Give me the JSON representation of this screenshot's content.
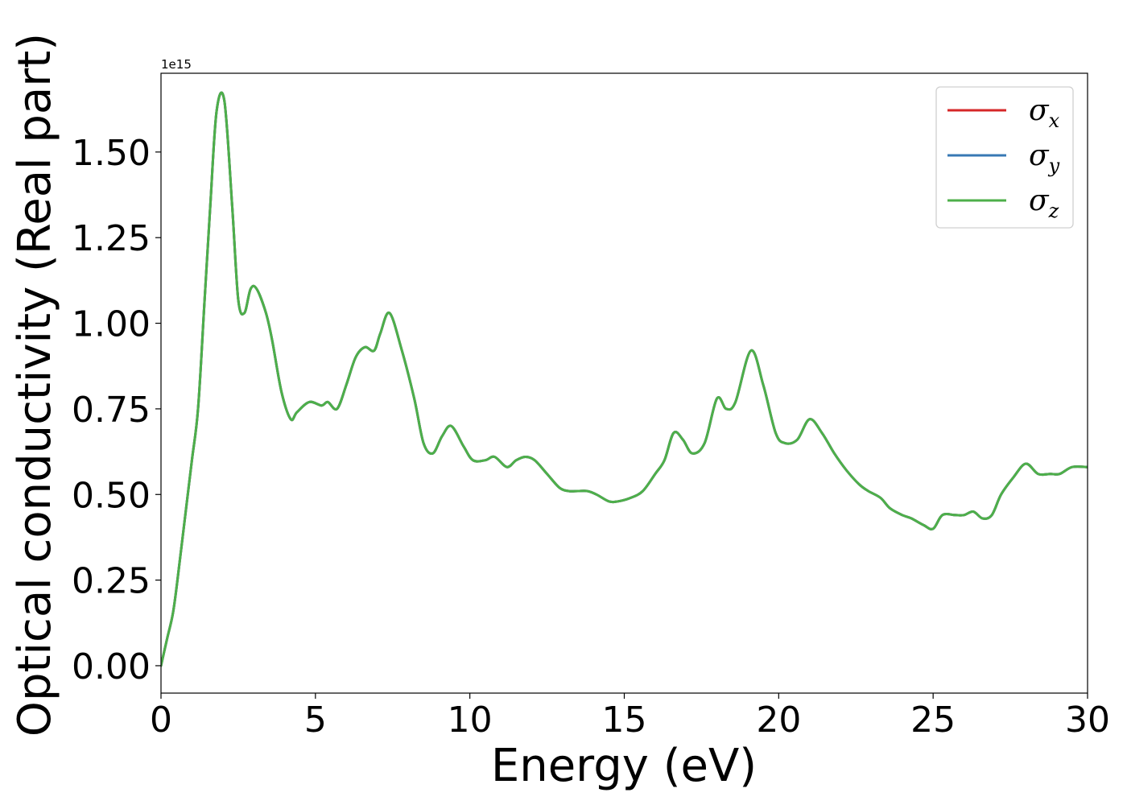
{
  "chart_data": {
    "type": "line",
    "title": "",
    "xlabel": "Energy (eV)",
    "ylabel": "Optical conductivity (Real part)",
    "y_offset_label": "1e15",
    "y_scale_factor": 1000000000000000.0,
    "xlim": [
      0,
      30
    ],
    "ylim": [
      -0.08,
      1.73
    ],
    "xticks": [
      0,
      5,
      10,
      15,
      20,
      25,
      30
    ],
    "xtick_labels": [
      "0",
      "5",
      "10",
      "15",
      "20",
      "25",
      "30"
    ],
    "yticks": [
      0.0,
      0.25,
      0.5,
      0.75,
      1.0,
      1.25,
      1.5
    ],
    "ytick_labels": [
      "0.00",
      "0.25",
      "0.50",
      "0.75",
      "1.00",
      "1.25",
      "1.50"
    ],
    "grid": false,
    "legend_position": "top-right",
    "x": [
      0,
      0.2,
      0.4,
      0.6,
      0.8,
      1.0,
      1.2,
      1.4,
      1.6,
      1.8,
      2.05,
      2.3,
      2.5,
      2.7,
      2.9,
      3.1,
      3.4,
      3.6,
      3.9,
      4.2,
      4.4,
      4.8,
      5.2,
      5.4,
      5.7,
      6.0,
      6.3,
      6.6,
      6.9,
      7.1,
      7.4,
      7.8,
      8.2,
      8.5,
      8.8,
      9.1,
      9.4,
      9.8,
      10.1,
      10.5,
      10.8,
      11.2,
      11.5,
      11.8,
      12.1,
      12.5,
      12.9,
      13.2,
      13.5,
      13.8,
      14.1,
      14.5,
      14.8,
      15.2,
      15.6,
      16.0,
      16.3,
      16.6,
      16.9,
      17.2,
      17.6,
      18.0,
      18.3,
      18.6,
      19.1,
      19.5,
      19.9,
      20.2,
      20.6,
      21.0,
      21.4,
      21.8,
      22.2,
      22.6,
      22.9,
      23.3,
      23.6,
      24.0,
      24.3,
      24.7,
      25.0,
      25.3,
      25.7,
      26.0,
      26.3,
      26.6,
      26.9,
      27.2,
      27.6,
      28.0,
      28.4,
      28.8,
      29.1,
      29.5,
      30.0
    ],
    "series": [
      {
        "name": "σx",
        "color": "#d62728",
        "values": [
          0.0,
          0.08,
          0.16,
          0.3,
          0.45,
          0.6,
          0.75,
          1.05,
          1.35,
          1.62,
          1.65,
          1.35,
          1.07,
          1.03,
          1.1,
          1.1,
          1.03,
          0.95,
          0.8,
          0.72,
          0.74,
          0.77,
          0.76,
          0.77,
          0.75,
          0.82,
          0.9,
          0.93,
          0.92,
          0.97,
          1.03,
          0.92,
          0.78,
          0.65,
          0.62,
          0.67,
          0.7,
          0.64,
          0.6,
          0.6,
          0.61,
          0.58,
          0.6,
          0.61,
          0.6,
          0.56,
          0.52,
          0.51,
          0.51,
          0.51,
          0.5,
          0.48,
          0.48,
          0.49,
          0.51,
          0.56,
          0.6,
          0.68,
          0.66,
          0.62,
          0.65,
          0.78,
          0.75,
          0.77,
          0.92,
          0.82,
          0.68,
          0.65,
          0.66,
          0.72,
          0.68,
          0.62,
          0.57,
          0.53,
          0.51,
          0.49,
          0.46,
          0.44,
          0.43,
          0.41,
          0.4,
          0.44,
          0.44,
          0.44,
          0.45,
          0.43,
          0.44,
          0.5,
          0.55,
          0.59,
          0.56,
          0.56,
          0.56,
          0.58,
          0.58
        ]
      },
      {
        "name": "σy",
        "color": "#3778b4",
        "values": [
          0.0,
          0.08,
          0.16,
          0.3,
          0.45,
          0.6,
          0.75,
          1.05,
          1.35,
          1.62,
          1.65,
          1.35,
          1.07,
          1.03,
          1.1,
          1.1,
          1.03,
          0.95,
          0.8,
          0.72,
          0.74,
          0.77,
          0.76,
          0.77,
          0.75,
          0.82,
          0.9,
          0.93,
          0.92,
          0.97,
          1.03,
          0.92,
          0.78,
          0.65,
          0.62,
          0.67,
          0.7,
          0.64,
          0.6,
          0.6,
          0.61,
          0.58,
          0.6,
          0.61,
          0.6,
          0.56,
          0.52,
          0.51,
          0.51,
          0.51,
          0.5,
          0.48,
          0.48,
          0.49,
          0.51,
          0.56,
          0.6,
          0.68,
          0.66,
          0.62,
          0.65,
          0.78,
          0.75,
          0.77,
          0.92,
          0.82,
          0.68,
          0.65,
          0.66,
          0.72,
          0.68,
          0.62,
          0.57,
          0.53,
          0.51,
          0.49,
          0.46,
          0.44,
          0.43,
          0.41,
          0.4,
          0.44,
          0.44,
          0.44,
          0.45,
          0.43,
          0.44,
          0.5,
          0.55,
          0.59,
          0.56,
          0.56,
          0.56,
          0.58,
          0.58
        ]
      },
      {
        "name": "σz",
        "color": "#4daf4a",
        "values": [
          0.0,
          0.08,
          0.16,
          0.3,
          0.45,
          0.6,
          0.75,
          1.05,
          1.35,
          1.62,
          1.65,
          1.35,
          1.07,
          1.03,
          1.1,
          1.1,
          1.03,
          0.95,
          0.8,
          0.72,
          0.74,
          0.77,
          0.76,
          0.77,
          0.75,
          0.82,
          0.9,
          0.93,
          0.92,
          0.97,
          1.03,
          0.92,
          0.78,
          0.65,
          0.62,
          0.67,
          0.7,
          0.64,
          0.6,
          0.6,
          0.61,
          0.58,
          0.6,
          0.61,
          0.6,
          0.56,
          0.52,
          0.51,
          0.51,
          0.51,
          0.5,
          0.48,
          0.48,
          0.49,
          0.51,
          0.56,
          0.6,
          0.68,
          0.66,
          0.62,
          0.65,
          0.78,
          0.75,
          0.77,
          0.92,
          0.82,
          0.68,
          0.65,
          0.66,
          0.72,
          0.68,
          0.62,
          0.57,
          0.53,
          0.51,
          0.49,
          0.46,
          0.44,
          0.43,
          0.41,
          0.4,
          0.44,
          0.44,
          0.44,
          0.45,
          0.43,
          0.44,
          0.5,
          0.55,
          0.59,
          0.56,
          0.56,
          0.56,
          0.58,
          0.58
        ]
      }
    ],
    "legend": [
      {
        "symbol": "σ",
        "subscript": "x",
        "color": "#d62728"
      },
      {
        "symbol": "σ",
        "subscript": "y",
        "color": "#3778b4"
      },
      {
        "symbol": "σ",
        "subscript": "z",
        "color": "#4daf4a"
      }
    ]
  }
}
